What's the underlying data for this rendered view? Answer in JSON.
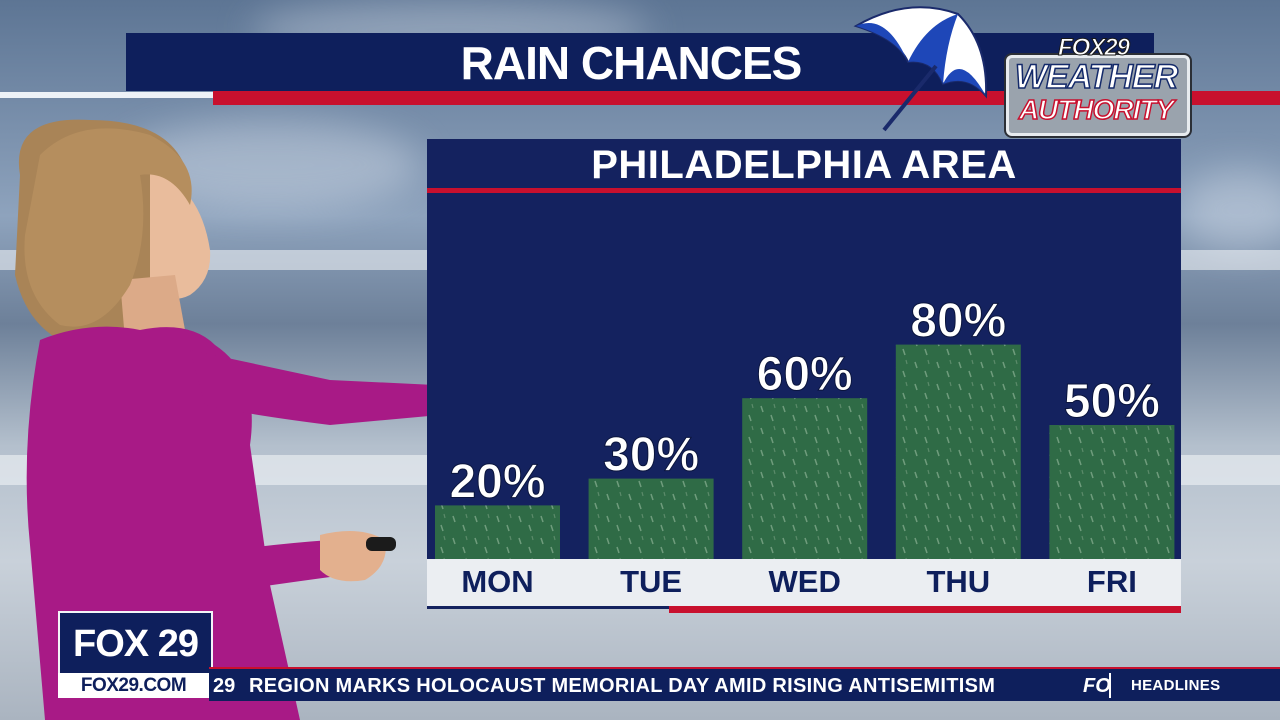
{
  "header": {
    "title": "RAIN CHANCES",
    "logo_top": "FOX29",
    "logo_mid": "WEATHER",
    "logo_bottom": "AUTHORITY"
  },
  "panel": {
    "title": "PHILADELPHIA AREA"
  },
  "chart_data": {
    "type": "bar",
    "title": "PHILADELPHIA AREA",
    "categories": [
      "MON",
      "TUE",
      "WED",
      "THU",
      "FRI"
    ],
    "values": [
      20,
      30,
      60,
      80,
      50
    ],
    "value_labels": [
      "20%",
      "30%",
      "60%",
      "80%",
      "50%"
    ],
    "ylim": [
      0,
      100
    ],
    "grid": false,
    "legend": "none",
    "bar_color": "#2f6b46"
  },
  "lower_third": {
    "station": "FOX 29",
    "url": "FOX29.COM",
    "ticker_fragment": "29",
    "ticker": "REGION MARKS HOLOCAUST MEMORIAL DAY AMID RISING ANTISEMITISM",
    "ticker_logo": "FO",
    "section": "HEADLINES"
  },
  "colors": {
    "navy": "#0e1f5c",
    "red": "#c8102e",
    "presenter_dress": "#a81a86"
  }
}
